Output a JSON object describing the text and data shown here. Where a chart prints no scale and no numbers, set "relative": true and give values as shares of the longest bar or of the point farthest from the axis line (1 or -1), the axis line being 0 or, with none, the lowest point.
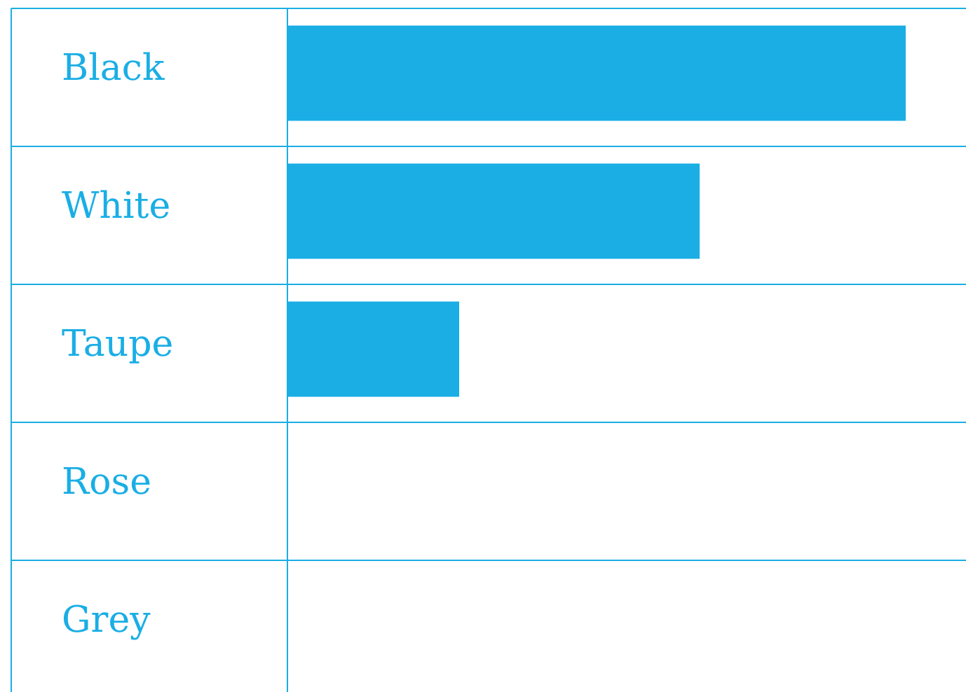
{
  "chart_data": {
    "type": "bar",
    "orientation": "horizontal",
    "relative": true,
    "categories": [
      "Black",
      "White",
      "Taupe",
      "Rose",
      "Grey"
    ],
    "series": [
      {
        "color": "#1aaee5",
        "values": [
          1,
          0.6667,
          0.2778,
          0,
          0
        ]
      }
    ]
  }
}
